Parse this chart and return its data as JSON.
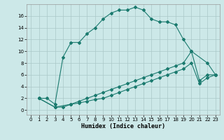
{
  "xlabel": "Humidex (Indice chaleur)",
  "background_color": "#cce8e8",
  "grid_color": "#aac8c8",
  "line_color": "#1a7a6e",
  "xlim": [
    -0.5,
    23.5
  ],
  "ylim": [
    -0.8,
    18
  ],
  "xticks": [
    0,
    1,
    2,
    3,
    4,
    5,
    6,
    7,
    8,
    9,
    10,
    11,
    12,
    13,
    14,
    15,
    16,
    17,
    18,
    19,
    20,
    21,
    22,
    23
  ],
  "yticks": [
    0,
    2,
    4,
    6,
    8,
    10,
    12,
    14,
    16
  ],
  "series1_x": [
    1,
    2,
    3,
    4,
    5,
    6,
    7,
    8,
    9,
    10,
    11,
    12,
    13,
    14,
    15,
    16,
    17,
    18,
    19,
    20,
    22,
    23
  ],
  "series1_y": [
    2,
    2,
    1,
    9,
    11.5,
    11.5,
    13,
    14,
    15.5,
    16.5,
    17,
    17,
    17.5,
    17,
    15.5,
    15,
    15,
    14.5,
    12,
    10,
    8,
    6
  ],
  "series2_x": [
    1,
    3,
    4,
    5,
    6,
    7,
    8,
    9,
    10,
    11,
    12,
    13,
    14,
    15,
    16,
    17,
    18,
    19,
    20,
    21,
    22,
    23
  ],
  "series2_y": [
    2,
    0.5,
    0.5,
    1,
    1.5,
    2,
    2.5,
    3,
    3.5,
    4,
    4.5,
    5,
    5.5,
    6,
    6.5,
    7,
    7.5,
    8,
    10,
    5,
    6,
    6
  ],
  "series3_x": [
    1,
    3,
    5,
    6,
    7,
    8,
    9,
    10,
    11,
    12,
    13,
    14,
    15,
    16,
    17,
    18,
    19,
    20,
    21,
    22,
    23
  ],
  "series3_y": [
    2,
    0.5,
    1,
    1.2,
    1.5,
    1.8,
    2,
    2.5,
    3,
    3.5,
    4,
    4.5,
    5,
    5.5,
    6,
    6.5,
    7,
    8,
    4.5,
    5.5,
    6
  ]
}
